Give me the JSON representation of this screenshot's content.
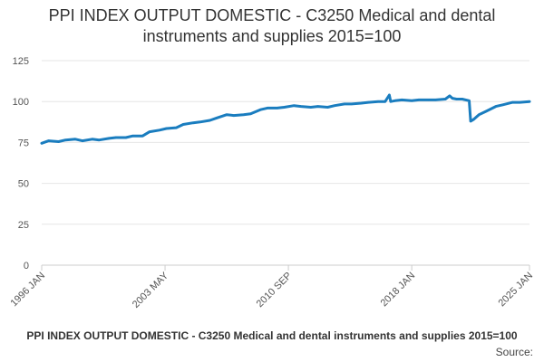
{
  "chart_data": {
    "type": "line",
    "title_lines": [
      "PPI INDEX OUTPUT DOMESTIC - C3250 Medical and dental",
      "instruments and supplies 2015=100"
    ],
    "xlabel": "",
    "ylabel": "",
    "ylim": [
      0,
      125
    ],
    "yticks": [
      0,
      25,
      50,
      75,
      100,
      125
    ],
    "xlim": [
      "1996-01",
      "2025-01"
    ],
    "xticks": [
      "1996 JAN",
      "2003 MAY",
      "2010 SEP",
      "2018 JAN",
      "2025 JAN"
    ],
    "grid": "horizontal",
    "legend": "bottom",
    "colors": {
      "line": "#1a7dbf",
      "grid": "#e6e6e6",
      "axis": "#cccccc",
      "text": "#555555"
    },
    "series": [
      {
        "name": "PPI INDEX OUTPUT DOMESTIC - C3250 Medical and dental instruments and supplies 2015=100",
        "x": [
          "1996-01",
          "1996-06",
          "1997-01",
          "1997-06",
          "1998-01",
          "1998-06",
          "1999-01",
          "1999-06",
          "2000-01",
          "2000-06",
          "2001-01",
          "2001-06",
          "2002-01",
          "2002-06",
          "2003-01",
          "2003-06",
          "2004-01",
          "2004-06",
          "2005-01",
          "2005-06",
          "2006-01",
          "2006-06",
          "2007-01",
          "2007-06",
          "2008-01",
          "2008-06",
          "2009-01",
          "2009-06",
          "2010-01",
          "2010-06",
          "2011-01",
          "2011-06",
          "2012-01",
          "2012-06",
          "2013-01",
          "2013-06",
          "2014-01",
          "2014-06",
          "2015-01",
          "2015-06",
          "2016-01",
          "2016-06",
          "2016-09",
          "2016-10",
          "2017-01",
          "2017-06",
          "2018-01",
          "2018-06",
          "2019-01",
          "2019-06",
          "2020-01",
          "2020-04",
          "2020-06",
          "2020-09",
          "2021-01",
          "2021-06",
          "2021-07",
          "2021-09",
          "2022-01",
          "2022-06",
          "2023-01",
          "2023-06",
          "2024-01",
          "2024-06",
          "2025-01"
        ],
        "values": [
          74.5,
          76.0,
          75.5,
          76.5,
          77.0,
          76.0,
          77.0,
          76.5,
          77.5,
          78.0,
          78.0,
          79.0,
          79.0,
          81.5,
          82.5,
          83.5,
          84.0,
          86.0,
          87.0,
          87.5,
          88.5,
          90.0,
          92.0,
          91.5,
          92.0,
          92.5,
          95.0,
          96.0,
          96.0,
          96.5,
          97.5,
          97.0,
          96.5,
          97.0,
          96.5,
          97.5,
          98.5,
          98.5,
          99.0,
          99.5,
          100.0,
          100.0,
          104.0,
          100.0,
          100.5,
          101.0,
          100.5,
          101.0,
          101.0,
          101.0,
          101.5,
          103.5,
          102.0,
          101.5,
          101.5,
          100.5,
          88.0,
          89.0,
          92.0,
          94.0,
          97.0,
          98.0,
          99.5,
          99.5,
          100.0
        ]
      }
    ]
  },
  "legend": {
    "label": "PPI INDEX OUTPUT DOMESTIC - C3250 Medical and dental instruments and supplies 2015=100"
  },
  "source": {
    "label": "Source:"
  }
}
